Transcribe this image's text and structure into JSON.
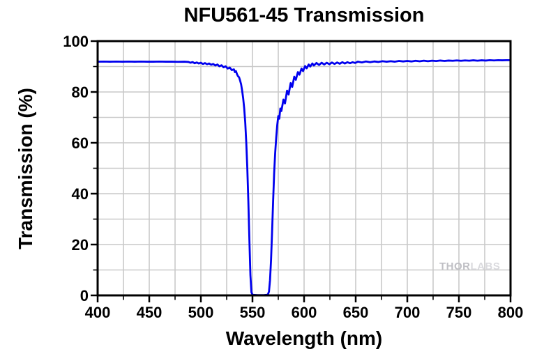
{
  "chart_data": {
    "type": "line",
    "title": "NFU561-45 Transmission",
    "xlabel": "Wavelength (nm)",
    "ylabel": "Transmission (%)",
    "xlim": [
      400,
      800
    ],
    "ylim": [
      0,
      100
    ],
    "x_major_ticks": [
      400,
      450,
      500,
      550,
      600,
      650,
      700,
      750,
      800
    ],
    "y_major_ticks": [
      0,
      20,
      40,
      60,
      80,
      100
    ],
    "x_minor_step": 25,
    "y_minor_step": 10,
    "grid": "on",
    "legend_position": "none",
    "line_color": "#0000EE",
    "grid_color": "#c9c9c9",
    "axis_color": "#000000",
    "background_color": "#ffffff",
    "series": [
      {
        "name": "Transmission",
        "points": [
          [
            400,
            91.9
          ],
          [
            406,
            91.95
          ],
          [
            412,
            91.9
          ],
          [
            418,
            91.95
          ],
          [
            424,
            91.9
          ],
          [
            430,
            91.95
          ],
          [
            436,
            91.9
          ],
          [
            442,
            91.95
          ],
          [
            448,
            91.9
          ],
          [
            454,
            91.9
          ],
          [
            460,
            91.95
          ],
          [
            466,
            91.9
          ],
          [
            472,
            91.9
          ],
          [
            478,
            91.85
          ],
          [
            484,
            91.9
          ],
          [
            488,
            91.8
          ],
          [
            490,
            91.5
          ],
          [
            492,
            91.75
          ],
          [
            494,
            91.3
          ],
          [
            496,
            91.6
          ],
          [
            498,
            91.2
          ],
          [
            500,
            91.5
          ],
          [
            502,
            91.0
          ],
          [
            504,
            91.35
          ],
          [
            506,
            90.9
          ],
          [
            508,
            91.2
          ],
          [
            510,
            90.7
          ],
          [
            512,
            91.0
          ],
          [
            514,
            90.4
          ],
          [
            516,
            90.8
          ],
          [
            518,
            90.1
          ],
          [
            520,
            90.5
          ],
          [
            522,
            89.7
          ],
          [
            524,
            90.1
          ],
          [
            526,
            89.2
          ],
          [
            528,
            89.6
          ],
          [
            530,
            88.6
          ],
          [
            532,
            88.9
          ],
          [
            533,
            87.8
          ],
          [
            534,
            88.2
          ],
          [
            535,
            87.0
          ],
          [
            536,
            86.2
          ],
          [
            537,
            85.8
          ],
          [
            538,
            84.5
          ],
          [
            539,
            83.0
          ],
          [
            540,
            80.5
          ],
          [
            541,
            77.5
          ],
          [
            542,
            73.5
          ],
          [
            543,
            68.0
          ],
          [
            544,
            60.0
          ],
          [
            545,
            50.0
          ],
          [
            546,
            37.0
          ],
          [
            547,
            22.0
          ],
          [
            548,
            8.0
          ],
          [
            549,
            1.2
          ],
          [
            550,
            0.3
          ],
          [
            552,
            0.15
          ],
          [
            555,
            0.1
          ],
          [
            558,
            0.1
          ],
          [
            561,
            0.1
          ],
          [
            564,
            0.2
          ],
          [
            565,
            0.4
          ],
          [
            566,
            1.5
          ],
          [
            567,
            6.0
          ],
          [
            568,
            14.0
          ],
          [
            569,
            25.0
          ],
          [
            570,
            37.0
          ],
          [
            571,
            48.0
          ],
          [
            572,
            56.0
          ],
          [
            573,
            62.0
          ],
          [
            574,
            67.0
          ],
          [
            575,
            70.5
          ],
          [
            576,
            69.5
          ],
          [
            577,
            73.5
          ],
          [
            578,
            72.5
          ],
          [
            580,
            77.0
          ],
          [
            581.5,
            75.5
          ],
          [
            583.5,
            80.5
          ],
          [
            585,
            79.0
          ],
          [
            587,
            83.5
          ],
          [
            588.5,
            82.0
          ],
          [
            590.5,
            86.0
          ],
          [
            592,
            84.8
          ],
          [
            594,
            87.8
          ],
          [
            595.5,
            86.8
          ],
          [
            597.5,
            89.2
          ],
          [
            599,
            88.2
          ],
          [
            601,
            90.2
          ],
          [
            602.5,
            89.3
          ],
          [
            604.5,
            90.8
          ],
          [
            606,
            90.0
          ],
          [
            608,
            91.2
          ],
          [
            609.5,
            90.4
          ],
          [
            612,
            91.4
          ],
          [
            614.5,
            90.6
          ],
          [
            617,
            91.5
          ],
          [
            619.5,
            90.8
          ],
          [
            622,
            91.5
          ],
          [
            624.5,
            90.9
          ],
          [
            627,
            91.6
          ],
          [
            629.5,
            91.0
          ],
          [
            632,
            91.6
          ],
          [
            634.5,
            91.1
          ],
          [
            637,
            91.7
          ],
          [
            639.5,
            91.2
          ],
          [
            642,
            91.7
          ],
          [
            644.5,
            91.3
          ],
          [
            647,
            91.7
          ],
          [
            649.5,
            91.4
          ],
          [
            652,
            91.9
          ],
          [
            656,
            91.6
          ],
          [
            660,
            92.0
          ],
          [
            664,
            91.7
          ],
          [
            668,
            92.0
          ],
          [
            672,
            91.8
          ],
          [
            676,
            92.1
          ],
          [
            680,
            91.9
          ],
          [
            684,
            92.1
          ],
          [
            688,
            91.9
          ],
          [
            692,
            92.2
          ],
          [
            696,
            92.0
          ],
          [
            700,
            92.2
          ],
          [
            704,
            92.0
          ],
          [
            708,
            92.25
          ],
          [
            712,
            92.05
          ],
          [
            716,
            92.3
          ],
          [
            720,
            92.1
          ],
          [
            724,
            92.3
          ],
          [
            728,
            92.15
          ],
          [
            732,
            92.35
          ],
          [
            736,
            92.2
          ],
          [
            740,
            92.35
          ],
          [
            744,
            92.25
          ],
          [
            748,
            92.4
          ],
          [
            752,
            92.25
          ],
          [
            756,
            92.4
          ],
          [
            760,
            92.3
          ],
          [
            764,
            92.45
          ],
          [
            768,
            92.3
          ],
          [
            772,
            92.45
          ],
          [
            776,
            92.35
          ],
          [
            780,
            92.5
          ],
          [
            784,
            92.4
          ],
          [
            788,
            92.5
          ],
          [
            792,
            92.45
          ],
          [
            796,
            92.5
          ],
          [
            800,
            92.5
          ]
        ]
      }
    ]
  },
  "watermark": {
    "part1": "THOR",
    "part2": "LABS",
    "color1": "#bfbfc4",
    "color2": "#dadade"
  }
}
